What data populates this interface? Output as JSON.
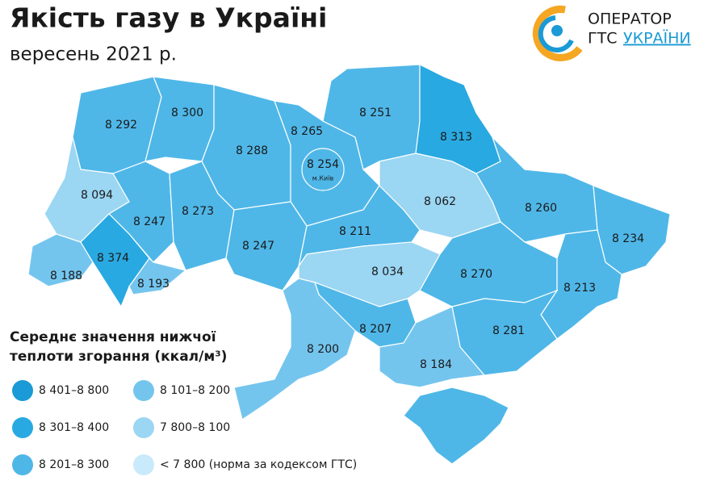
{
  "header": {
    "title": "Якість газу в Україні",
    "subtitle": "вересень 2021 р."
  },
  "logo": {
    "line1": "ОПЕРАТОР",
    "line2a": "ГТС",
    "line2b": "УКРАЇНИ"
  },
  "map": {
    "regions": [
      {
        "label": "8 292",
        "color": "#4fb7e8"
      },
      {
        "label": "8 300",
        "color": "#4fb7e8"
      },
      {
        "label": "8 288",
        "color": "#4fb7e8"
      },
      {
        "label": "8 265",
        "color": "#4fb7e8"
      },
      {
        "label": "8 251",
        "color": "#4fb7e8"
      },
      {
        "label": "8 313",
        "color": "#29a9e1"
      },
      {
        "label": "8 094",
        "color": "#9bd6f3"
      },
      {
        "label": "8 247",
        "color": "#4fb7e8"
      },
      {
        "label": "8 273",
        "color": "#4fb7e8"
      },
      {
        "label": "8 247",
        "color": "#4fb7e8"
      },
      {
        "label": "8 211",
        "color": "#4fb7e8"
      },
      {
        "label": "8 062",
        "color": "#9bd6f3"
      },
      {
        "label": "8 260",
        "color": "#4fb7e8"
      },
      {
        "label": "8 234",
        "color": "#4fb7e8"
      },
      {
        "label": "8 188",
        "color": "#74c5ee"
      },
      {
        "label": "8 374",
        "color": "#29a9e1"
      },
      {
        "label": "8 193",
        "color": "#74c5ee"
      },
      {
        "label": "8 034",
        "color": "#9bd6f3"
      },
      {
        "label": "8 270",
        "color": "#4fb7e8"
      },
      {
        "label": "8 213",
        "color": "#4fb7e8"
      },
      {
        "label": "8 207",
        "color": "#4fb7e8"
      },
      {
        "label": "8 200",
        "color": "#74c5ee"
      },
      {
        "label": "8 281",
        "color": "#4fb7e8"
      },
      {
        "label": "8 184",
        "color": "#74c5ee"
      },
      {
        "color": "#4fb7e8"
      }
    ],
    "kyiv_city": {
      "label": "8 254",
      "note": "м.Київ",
      "color": "#4fb7e8"
    }
  },
  "legend": {
    "title_line1": "Середнє значення нижчої",
    "title_line2": "теплоти згорання (ккал/м³)",
    "items": [
      {
        "label": "8 401–8 800",
        "color": "#1a9ad6"
      },
      {
        "label": "8 301–8 400",
        "color": "#29a9e1"
      },
      {
        "label": "8 201–8 300",
        "color": "#4fb7e8"
      },
      {
        "label": "8 101–8 200",
        "color": "#74c5ee"
      },
      {
        "label": "7 800–8 100",
        "color": "#9bd6f3"
      },
      {
        "label": "< 7 800 (норма за кодексом ГТС)",
        "color": "#c9eafa"
      }
    ]
  }
}
